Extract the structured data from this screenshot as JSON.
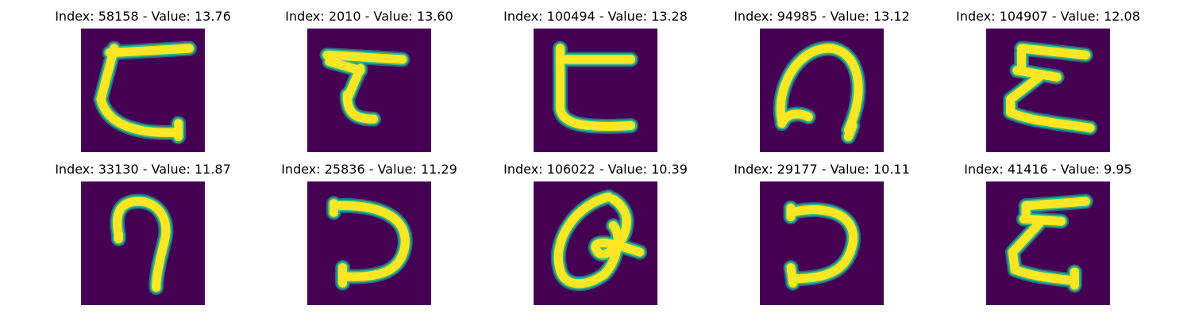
{
  "colors": {
    "background": "#440154",
    "stroke_outer": "#2a7b8e",
    "stroke_mid": "#35b779",
    "stroke_core": "#fde725"
  },
  "panels": [
    {
      "title": "Index: 58158 - Value: 13.76"
    },
    {
      "title": "Index: 2010 - Value: 13.60"
    },
    {
      "title": "Index: 100494 - Value: 13.28"
    },
    {
      "title": "Index: 94985 - Value: 13.12"
    },
    {
      "title": "Index: 104907 - Value: 12.08"
    },
    {
      "title": "Index: 33130 - Value: 11.87"
    },
    {
      "title": "Index: 25836 - Value: 11.29"
    },
    {
      "title": "Index: 106022 - Value: 10.39"
    },
    {
      "title": "Index: 29177 - Value: 10.11"
    },
    {
      "title": "Index: 41416 - Value: 9.95"
    }
  ]
}
